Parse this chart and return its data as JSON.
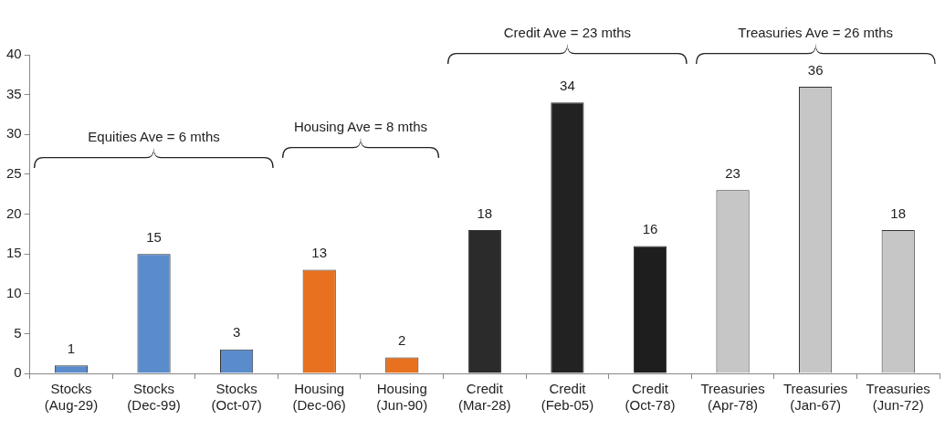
{
  "chart_data": {
    "type": "bar",
    "categories": [
      "Stocks\n(Aug-29)",
      "Stocks\n(Dec-99)",
      "Stocks\n(Oct-07)",
      "Housing\n(Dec-06)",
      "Housing\n(Jun-90)",
      "Credit\n(Mar-28)",
      "Credit\n(Feb-05)",
      "Credit\n(Oct-78)",
      "Treasuries\n(Apr-78)",
      "Treasuries\n(Jan-67)",
      "Treasuries\n(Jun-72)"
    ],
    "values": [
      1,
      15,
      3,
      13,
      2,
      18,
      34,
      16,
      23,
      36,
      18
    ],
    "colors": [
      "#5a8ccc",
      "#5a8ccc",
      "#5a8ccc",
      "#e8711f",
      "#e8711f",
      "#2b2b2b",
      "#222222",
      "#1e1e1e",
      "#c6c6c6",
      "#c6c6c6",
      "#c6c6c6"
    ],
    "ylim": [
      0,
      40
    ],
    "yticks": [
      0,
      5,
      10,
      15,
      20,
      25,
      30,
      35,
      40
    ],
    "grid": false,
    "legend": false,
    "data_labels": true,
    "annotations": [
      "Equities Ave = 6 mths",
      "Housing Ave = 8 mths",
      "Credit Ave = 23 mths",
      "Treasuries Ave = 26 mths"
    ]
  }
}
